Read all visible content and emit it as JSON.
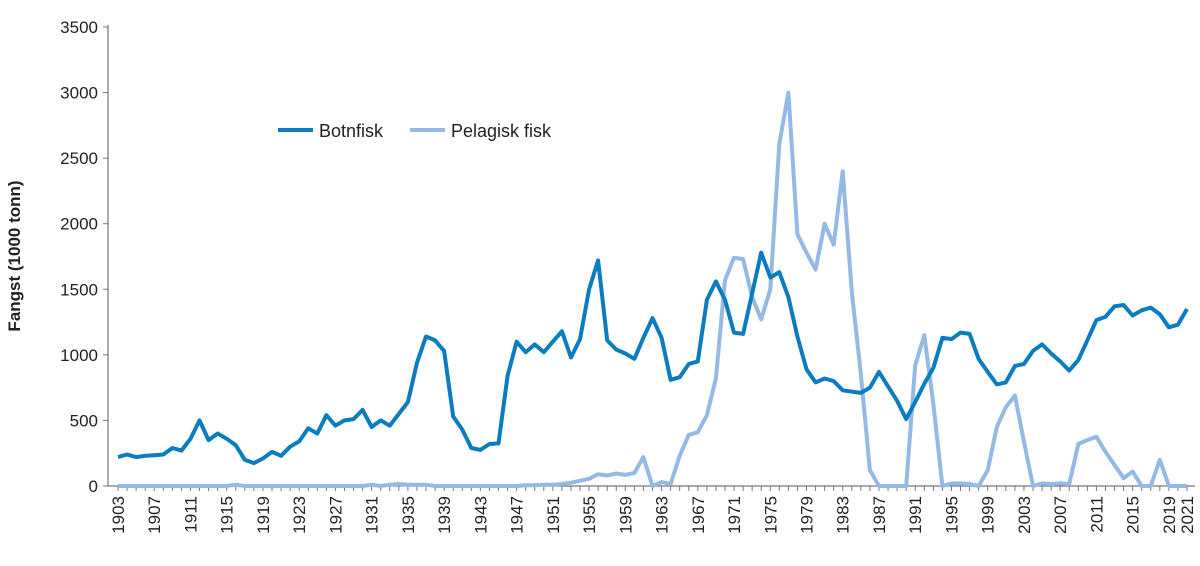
{
  "chart_data": {
    "type": "line",
    "title": "",
    "xlabel": "",
    "ylabel": "Fangst (1000 tonn)",
    "ylim": [
      0,
      3500
    ],
    "yticks": [
      0,
      500,
      1000,
      1500,
      2000,
      2500,
      3000,
      3500
    ],
    "xlim": [
      1903,
      2021
    ],
    "xtick_labels": [
      1903,
      1907,
      1911,
      1915,
      1919,
      1923,
      1927,
      1931,
      1935,
      1939,
      1943,
      1947,
      1951,
      1955,
      1959,
      1963,
      1967,
      1971,
      1975,
      1979,
      1983,
      1987,
      1991,
      1995,
      1999,
      2003,
      2007,
      2011,
      2015,
      2019,
      2021
    ],
    "grid": false,
    "legend_position": "top-left",
    "x_start": 1903,
    "series": [
      {
        "name": "Botnfisk",
        "color": "#0a7cc0",
        "values": [
          220,
          240,
          220,
          230,
          235,
          240,
          290,
          270,
          360,
          500,
          350,
          400,
          360,
          310,
          200,
          175,
          210,
          260,
          230,
          300,
          340,
          440,
          400,
          540,
          460,
          500,
          510,
          580,
          450,
          500,
          460,
          550,
          640,
          940,
          1140,
          1110,
          1030,
          530,
          430,
          290,
          275,
          320,
          325,
          840,
          1100,
          1020,
          1080,
          1020,
          1100,
          1180,
          980,
          1120,
          1500,
          1720,
          1110,
          1040,
          1010,
          970,
          1130,
          1280,
          1130,
          810,
          830,
          930,
          950,
          1420,
          1560,
          1420,
          1170,
          1160,
          1470,
          1780,
          1590,
          1630,
          1440,
          1140,
          890,
          790,
          820,
          800,
          730,
          720,
          710,
          750,
          870,
          760,
          650,
          510,
          640,
          780,
          900,
          1130,
          1120,
          1170,
          1160,
          970,
          870,
          775,
          790,
          915,
          930,
          1030,
          1080,
          1010,
          950,
          880,
          960,
          1110,
          1265,
          1290,
          1370,
          1380,
          1300,
          1340,
          1360,
          1310,
          1210,
          1230,
          1350
        ]
      },
      {
        "name": "Pelagisk fisk",
        "color": "#93b9e4",
        "values": [
          0,
          0,
          0,
          0,
          0,
          0,
          0,
          0,
          0,
          0,
          0,
          0,
          0,
          10,
          0,
          0,
          0,
          0,
          0,
          0,
          0,
          0,
          0,
          0,
          0,
          0,
          0,
          0,
          10,
          0,
          10,
          15,
          10,
          10,
          10,
          0,
          0,
          0,
          0,
          0,
          0,
          0,
          0,
          0,
          0,
          5,
          5,
          10,
          10,
          15,
          25,
          40,
          55,
          90,
          80,
          95,
          85,
          100,
          220,
          0,
          30,
          15,
          230,
          390,
          410,
          540,
          820,
          1570,
          1740,
          1730,
          1440,
          1270,
          1500,
          2610,
          3000,
          1920,
          1780,
          1650,
          2000,
          1840,
          2400,
          1480,
          850,
          120,
          0,
          0,
          0,
          0,
          920,
          1150,
          630,
          0,
          20,
          20,
          15,
          0,
          120,
          450,
          600,
          690,
          340,
          0,
          20,
          15,
          20,
          15,
          320,
          350,
          375,
          260,
          160,
          60,
          110,
          0,
          0,
          200,
          0,
          0,
          0
        ]
      }
    ]
  }
}
